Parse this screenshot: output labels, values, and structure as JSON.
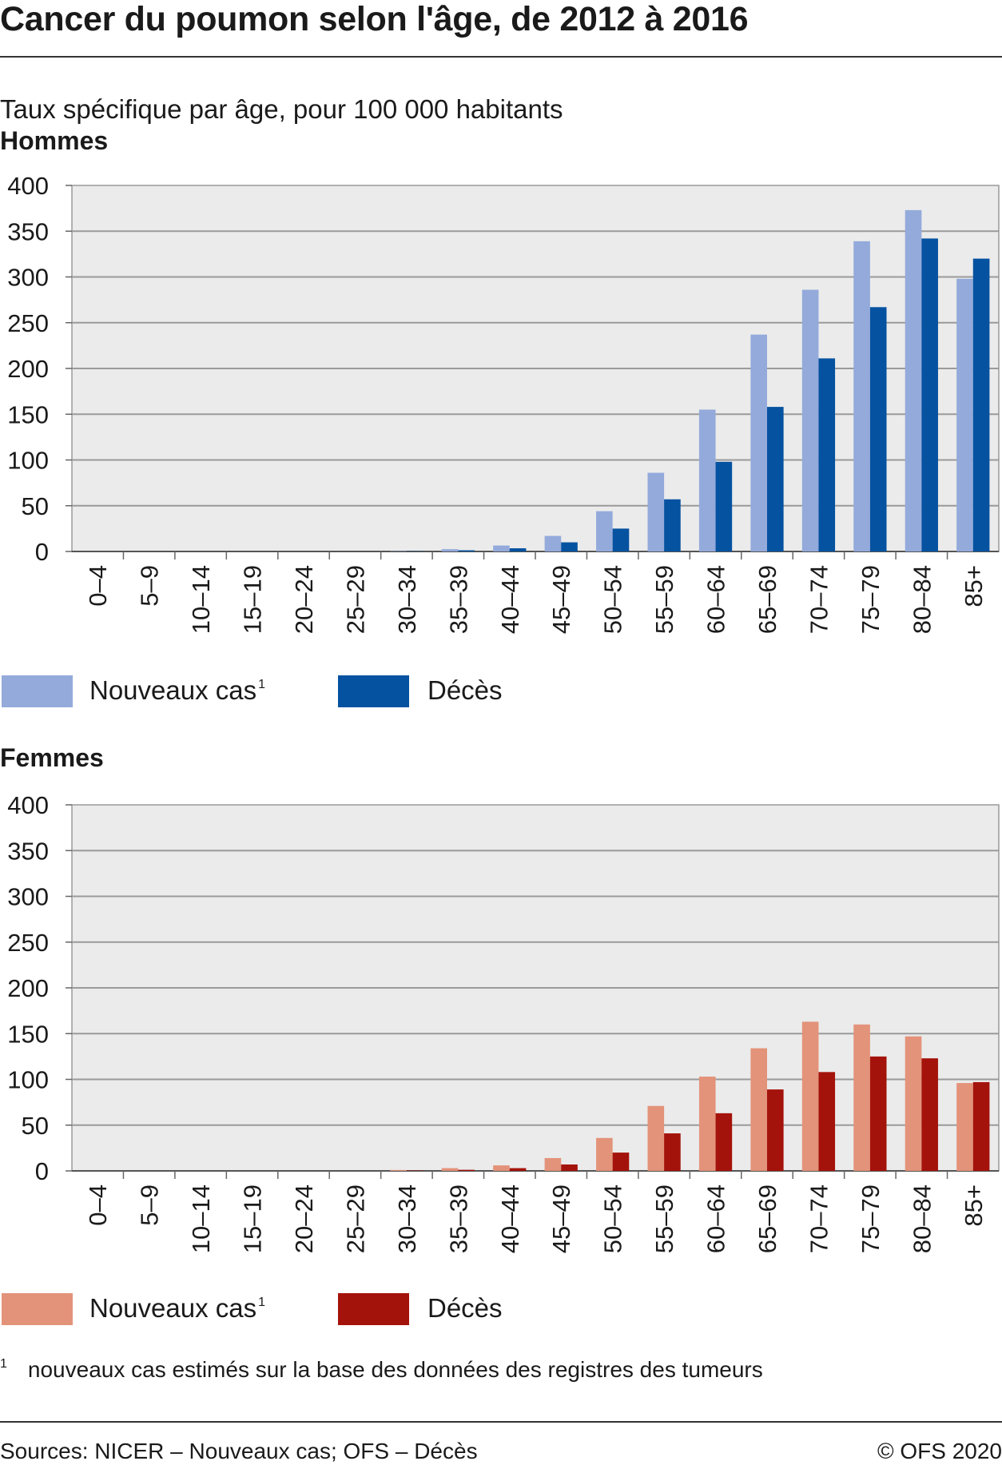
{
  "title": "Cancer du poumon selon l'âge, de 2012 à 2016",
  "subtitle": "Taux spécifique par âge, pour 100 000 habitants",
  "footnote": {
    "mark": "1",
    "text": "nouveaux cas estimés sur la base des données des registres des tumeurs"
  },
  "source": "Sources: NICER – Nouveaux cas; OFS – Décès",
  "copyright": "© OFS 2020",
  "chart_data": [
    {
      "type": "bar",
      "title": "Hommes",
      "categories": [
        "0–4",
        "5–9",
        "10–14",
        "15–19",
        "20–24",
        "25–29",
        "30–34",
        "35–39",
        "40–44",
        "45–49",
        "50–54",
        "55–59",
        "60–64",
        "65–69",
        "70–74",
        "75–79",
        "80–84",
        "85+"
      ],
      "yticks": [
        "0",
        "50",
        "100",
        "150",
        "200",
        "250",
        "300",
        "350",
        "400"
      ],
      "ylim": [
        0,
        400
      ],
      "grid": true,
      "legend_position": "bottom-left",
      "series": [
        {
          "name": "Nouveaux cas",
          "sup": "1",
          "color": "#93aadb",
          "values": [
            0,
            0,
            0,
            0,
            0,
            0,
            0.3,
            2.5,
            6.5,
            17,
            44,
            86,
            155,
            237,
            286,
            339,
            373,
            298
          ]
        },
        {
          "name": "Décès",
          "sup": "",
          "color": "#0552a0",
          "values": [
            0,
            0,
            0,
            0,
            0,
            0,
            0.2,
            1.3,
            3.5,
            10,
            25,
            57,
            98,
            158,
            211,
            267,
            342,
            320
          ]
        }
      ]
    },
    {
      "type": "bar",
      "title": "Femmes",
      "categories": [
        "0–4",
        "5–9",
        "10–14",
        "15–19",
        "20–24",
        "25–29",
        "30–34",
        "35–39",
        "40–44",
        "45–49",
        "50–54",
        "55–59",
        "60–64",
        "65–69",
        "70–74",
        "75–79",
        "80–84",
        "85+"
      ],
      "yticks": [
        "0",
        "50",
        "100",
        "150",
        "200",
        "250",
        "300",
        "350",
        "400"
      ],
      "ylim": [
        0,
        400
      ],
      "grid": true,
      "legend_position": "bottom-left",
      "series": [
        {
          "name": "Nouveaux cas",
          "sup": "1",
          "color": "#e3937a",
          "values": [
            0,
            0,
            0,
            0,
            0,
            0,
            1,
            3,
            6,
            14,
            36,
            71,
            103,
            134,
            163,
            160,
            147,
            96
          ]
        },
        {
          "name": "Décès",
          "sup": "",
          "color": "#a4130b",
          "values": [
            0,
            0,
            0,
            0,
            0,
            0,
            0.4,
            1.2,
            3,
            7,
            20,
            41,
            63,
            89,
            108,
            125,
            123,
            97
          ]
        }
      ]
    }
  ]
}
